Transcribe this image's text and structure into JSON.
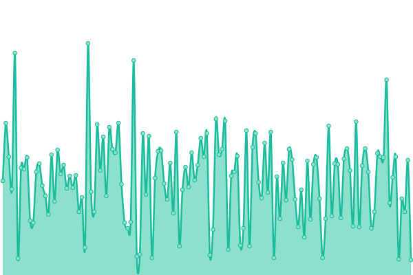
{
  "chart_data": {
    "type": "area",
    "color": "#1abc9c",
    "fill": "#8ce0cc",
    "ylim": [
      0,
      400
    ],
    "values": [
      137,
      221,
      172,
      125,
      323,
      24,
      156,
      154,
      171,
      79,
      76,
      150,
      162,
      130,
      115,
      88,
      175,
      107,
      182,
      147,
      160,
      126,
      144,
      127,
      145,
      92,
      113,
      40,
      337,
      121,
      92,
      219,
      152,
      201,
      115,
      215,
      183,
      178,
      221,
      132,
      76,
      68,
      77,
      312,
      27,
      30,
      206,
      117,
      202,
      25,
      141,
      180,
      181,
      133,
      110,
      163,
      90,
      208,
      42,
      124,
      157,
      128,
      178,
      138,
      160,
      199,
      172,
      206,
      29,
      66,
      227,
      175,
      183,
      224,
      37,
      144,
      150,
      173,
      43,
      68,
      210,
      42,
      186,
      206,
      135,
      112,
      192,
      120,
      208,
      25,
      143,
      82,
      163,
      109,
      183,
      168,
      110,
      70,
      124,
      55,
      166,
      81,
      161,
      171,
      111,
      25,
      82,
      217,
      86,
      162,
      161,
      83,
      169,
      184,
      152,
      71,
      223,
      70,
      159,
      184,
      150,
      68,
      92,
      177,
      172,
      171,
      284,
      105,
      142,
      172,
      23,
      111,
      92,
      167,
      22
    ]
  }
}
